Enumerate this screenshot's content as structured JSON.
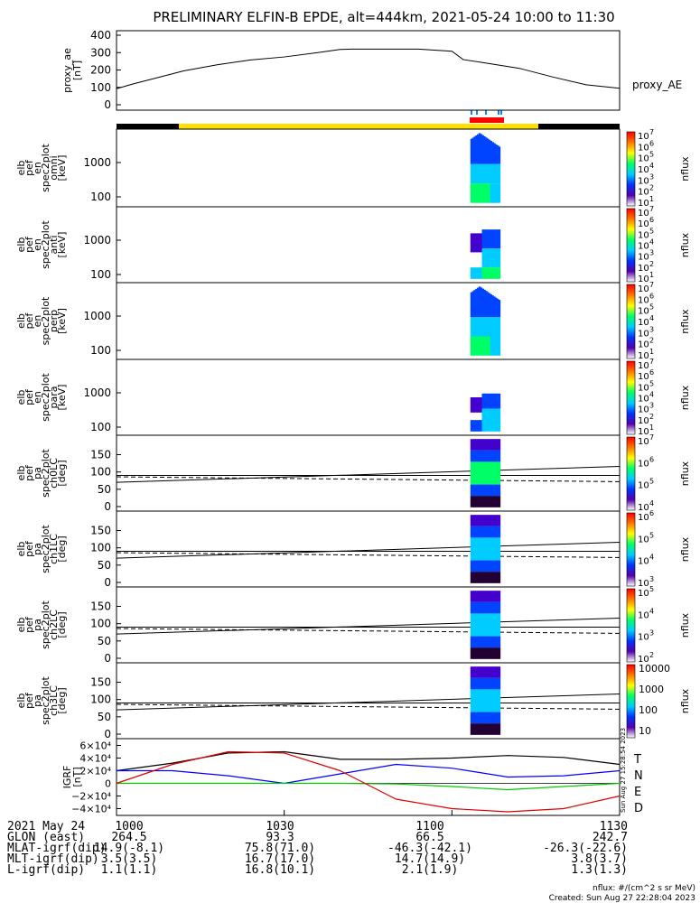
{
  "title": "PRELIMINARY ELFIN-B EPDE, alt=444km, 2021-05-24 10:00 to 11:30",
  "colors": {
    "axis": "#000000",
    "bar_dark": "#000000",
    "bar_yellow": "#ffe000",
    "bar_red": "#ff0000",
    "tick_blue": "#0088ff",
    "T": "#000000",
    "N": "#0000ff",
    "E": "#00cc00",
    "D": "#dd0000"
  },
  "panels": [
    {
      "key": "ae",
      "ylabel": [
        "proxy_ae",
        "[nT]"
      ],
      "yticks": [
        "400",
        "300",
        "200",
        "100",
        "0"
      ],
      "legend": "proxy_AE"
    },
    {
      "key": "omni",
      "ylabel": [
        "elb",
        "pef",
        "en",
        "spec2plot",
        "omni",
        "[keV]"
      ],
      "yticks": [
        "1000",
        "100"
      ],
      "cbar_ticks": [
        "10",
        "7",
        "6",
        "5",
        "4",
        "3",
        "2",
        "1"
      ],
      "cbar_label": "nflux"
    },
    {
      "key": "anti",
      "ylabel": [
        "elb",
        "pef",
        "en",
        "spec2plot",
        "anti",
        "[keV]"
      ],
      "yticks": [
        "1000",
        "100"
      ],
      "cbar_ticks": [
        "10",
        "7",
        "6",
        "5",
        "4",
        "3",
        "2",
        "1"
      ],
      "cbar_label": "nflux"
    },
    {
      "key": "perp",
      "ylabel": [
        "elb",
        "pef",
        "en",
        "spec2plot",
        "perp",
        "[keV]"
      ],
      "yticks": [
        "1000",
        "100"
      ],
      "cbar_ticks": [
        "10",
        "7",
        "6",
        "5",
        "4",
        "3",
        "2",
        "1"
      ],
      "cbar_label": "nflux"
    },
    {
      "key": "para",
      "ylabel": [
        "elb",
        "pef",
        "en",
        "spec2plot",
        "para",
        "[keV]"
      ],
      "yticks": [
        "1000",
        "100"
      ],
      "cbar_ticks": [
        "10",
        "7",
        "6",
        "5",
        "4",
        "3",
        "2",
        "1"
      ],
      "cbar_label": "nflux"
    },
    {
      "key": "ch0",
      "ylabel": [
        "elb",
        "pef",
        "pa",
        "spec2plot",
        "ch0LC",
        "[deg]"
      ],
      "yticks": [
        "150",
        "100",
        "50",
        "0"
      ],
      "cbar_ticks": [
        "10",
        "7",
        "6",
        "5",
        "4"
      ],
      "cbar_label": "nflux"
    },
    {
      "key": "ch1",
      "ylabel": [
        "elb",
        "pef",
        "pa",
        "spec2plot",
        "ch1LC",
        "[deg]"
      ],
      "yticks": [
        "150",
        "100",
        "50",
        "0"
      ],
      "cbar_ticks": [
        "10",
        "6",
        "5",
        "4",
        "3"
      ],
      "cbar_label": "nflux"
    },
    {
      "key": "ch2",
      "ylabel": [
        "elb",
        "pef",
        "pa",
        "spec2plot",
        "ch2LC",
        "[deg]"
      ],
      "yticks": [
        "150",
        "100",
        "50",
        "0"
      ],
      "cbar_ticks": [
        "10",
        "5",
        "4",
        "3",
        "2"
      ],
      "cbar_label": "nflux"
    },
    {
      "key": "ch3",
      "ylabel": [
        "elb",
        "pef",
        "pa",
        "spec2plot",
        "ch3LC",
        "[deg]"
      ],
      "yticks": [
        "150",
        "100",
        "50",
        "0"
      ],
      "cbar_ticks": [
        "10000",
        "1000",
        "100",
        "10"
      ],
      "cbar_label": "nflux"
    },
    {
      "key": "igrf",
      "ylabel": [
        "IGRF",
        "[nT]"
      ],
      "yticks": [
        "6×10⁴",
        "4×10⁴",
        "2×10⁴",
        "0",
        "−2×10⁴",
        "−4×10⁴"
      ],
      "legend": [
        "T",
        "N",
        "E",
        "D"
      ],
      "side_text": "Sun Aug 27 15:28:54 2023"
    }
  ],
  "chart_data": {
    "type": "line",
    "x_ticks": [
      "1000",
      "1030",
      "1100",
      "1130"
    ],
    "x_range_minutes": [
      0,
      90
    ],
    "proxy_ae": {
      "ylim": [
        0,
        400
      ],
      "x": [
        0,
        3,
        6,
        12,
        18,
        24,
        30,
        36,
        40,
        42,
        48,
        54,
        60,
        62,
        66,
        72,
        78,
        84,
        90
      ],
      "y": [
        92,
        120,
        145,
        195,
        230,
        258,
        275,
        300,
        318,
        320,
        320,
        320,
        308,
        260,
        240,
        210,
        160,
        115,
        95
      ]
    },
    "spectrogram_time_range": [
      63.3,
      68.6
    ],
    "igrf": {
      "ylim": [
        -45000,
        65000
      ],
      "series": [
        {
          "name": "T",
          "x": [
            0,
            10,
            20,
            30,
            40,
            50,
            60,
            70,
            80,
            90
          ],
          "y": [
            20000,
            32000,
            48000,
            50000,
            38000,
            38000,
            40000,
            44000,
            41000,
            30000
          ]
        },
        {
          "name": "N",
          "x": [
            0,
            10,
            20,
            30,
            40,
            50,
            60,
            70,
            80,
            90
          ],
          "y": [
            20000,
            20000,
            12000,
            0,
            15000,
            30000,
            24000,
            10000,
            12000,
            20000
          ]
        },
        {
          "name": "E",
          "x": [
            0,
            10,
            20,
            30,
            40,
            50,
            60,
            70,
            80,
            90
          ],
          "y": [
            0,
            0,
            0,
            0,
            0,
            -1000,
            -5000,
            -10000,
            -5000,
            0
          ]
        },
        {
          "name": "D",
          "x": [
            0,
            10,
            20,
            30,
            40,
            50,
            60,
            70,
            80,
            90
          ],
          "y": [
            0,
            30000,
            50000,
            48000,
            20000,
            -25000,
            -40000,
            -45000,
            -40000,
            -20000
          ]
        }
      ]
    }
  },
  "footer": {
    "rows": [
      [
        "2021 May 24",
        "1000",
        "1030",
        "1100",
        "1130"
      ],
      [
        "GLON (east)",
        "264.5",
        "93.3",
        "66.5",
        "242.7"
      ],
      [
        "MLAT-igrf(dip)",
        "14.9(-8.1)",
        "75.8(71.0)",
        "-46.3(-42.1)",
        "-26.3(-22.6)"
      ],
      [
        "MLT-igrf(dip)",
        "3.5(3.5)",
        "16.7(17.0)",
        "14.7(14.9)",
        "3.8(3.7)"
      ],
      [
        "L-igrf(dip)",
        "1.1(1.1)",
        "16.8(10.1)",
        "2.1(1.9)",
        "1.3(1.3)"
      ]
    ],
    "units": "nflux: #/(cm^2 s sr MeV)",
    "created": "Created: Sun Aug 27 22:28:04 2023"
  }
}
